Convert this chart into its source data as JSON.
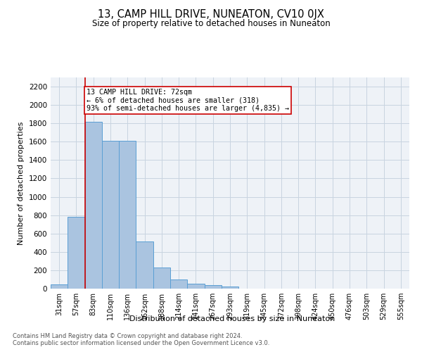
{
  "title": "13, CAMP HILL DRIVE, NUNEATON, CV10 0JX",
  "subtitle": "Size of property relative to detached houses in Nuneaton",
  "xlabel": "Distribution of detached houses by size in Nuneaton",
  "ylabel": "Number of detached properties",
  "footnote1": "Contains HM Land Registry data © Crown copyright and database right 2024.",
  "footnote2": "Contains public sector information licensed under the Open Government Licence v3.0.",
  "categories": [
    "31sqm",
    "57sqm",
    "83sqm",
    "110sqm",
    "136sqm",
    "162sqm",
    "188sqm",
    "214sqm",
    "241sqm",
    "267sqm",
    "293sqm",
    "319sqm",
    "345sqm",
    "372sqm",
    "398sqm",
    "424sqm",
    "450sqm",
    "476sqm",
    "503sqm",
    "529sqm",
    "555sqm"
  ],
  "values": [
    45,
    780,
    1820,
    1610,
    1610,
    510,
    230,
    100,
    55,
    35,
    20,
    0,
    0,
    0,
    0,
    0,
    0,
    0,
    0,
    0,
    0
  ],
  "bar_color": "#aac4e0",
  "bar_edge_color": "#5a9fd4",
  "ylim": [
    0,
    2300
  ],
  "yticks": [
    0,
    200,
    400,
    600,
    800,
    1000,
    1200,
    1400,
    1600,
    1800,
    2000,
    2200
  ],
  "property_line_x": 2,
  "property_line_color": "#cc0000",
  "annotation_line1": "13 CAMP HILL DRIVE: 72sqm",
  "annotation_line2": "← 6% of detached houses are smaller (318)",
  "annotation_line3": "93% of semi-detached houses are larger (4,835) →",
  "bg_color": "#eef2f7",
  "grid_color": "#c8d4e0"
}
